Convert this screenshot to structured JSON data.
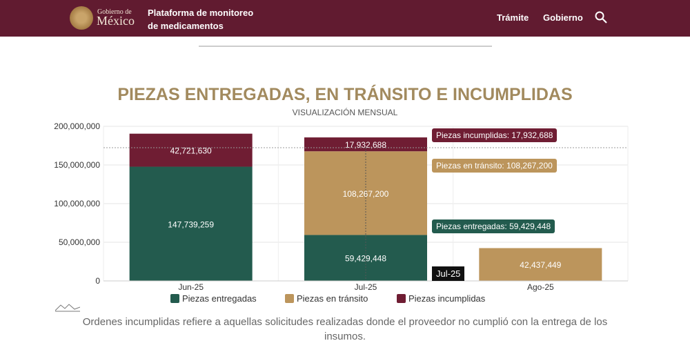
{
  "header": {
    "logo_top": "Gobierno de",
    "logo_bottom": "México",
    "platform_line1": "Plataforma de monitoreo",
    "platform_line2": "de medicamentos",
    "links": [
      "Trámite",
      "Gobierno"
    ]
  },
  "chart_data": {
    "type": "bar",
    "stacked": true,
    "title": "PIEZAS ENTREGADAS, EN TRÁNSITO E INCUMPLIDAS",
    "subtitle": "VISUALIZACIÓN MENSUAL",
    "categories": [
      "Jun-25",
      "Jul-25",
      "Ago-25"
    ],
    "yticks": [
      "0",
      "50,000,000",
      "100,000,000",
      "150,000,000",
      "200,000,000"
    ],
    "ylim": [
      0,
      200000000
    ],
    "series": [
      {
        "name": "Piezas entregadas",
        "color": "#235b4e",
        "values": [
          147739259,
          59429448,
          0
        ],
        "labels": [
          "147,739,259",
          "59,429,448",
          ""
        ]
      },
      {
        "name": "Piezas en tránsito",
        "color": "#bc955c",
        "values": [
          0,
          108267200,
          42437449
        ],
        "labels": [
          "",
          "108,267,200",
          "42,437,449"
        ]
      },
      {
        "name": "Piezas incumplidas",
        "color": "#6f1d33",
        "values": [
          42721630,
          17932688,
          0
        ],
        "labels": [
          "42,721,630",
          "17,932,688",
          ""
        ]
      }
    ],
    "legend": "bottom",
    "tooltips": [
      "Piezas incumplidas: 17,932,688",
      "Piezas en tránsito: 108,267,200",
      "Piezas entregadas: 59,429,448"
    ],
    "hover_category": "Jul-25"
  },
  "note": "Ordenes incumplidas refiere a aquellas solicitudes realizadas donde el proveedor no cumplió con la entrega de los insumos."
}
